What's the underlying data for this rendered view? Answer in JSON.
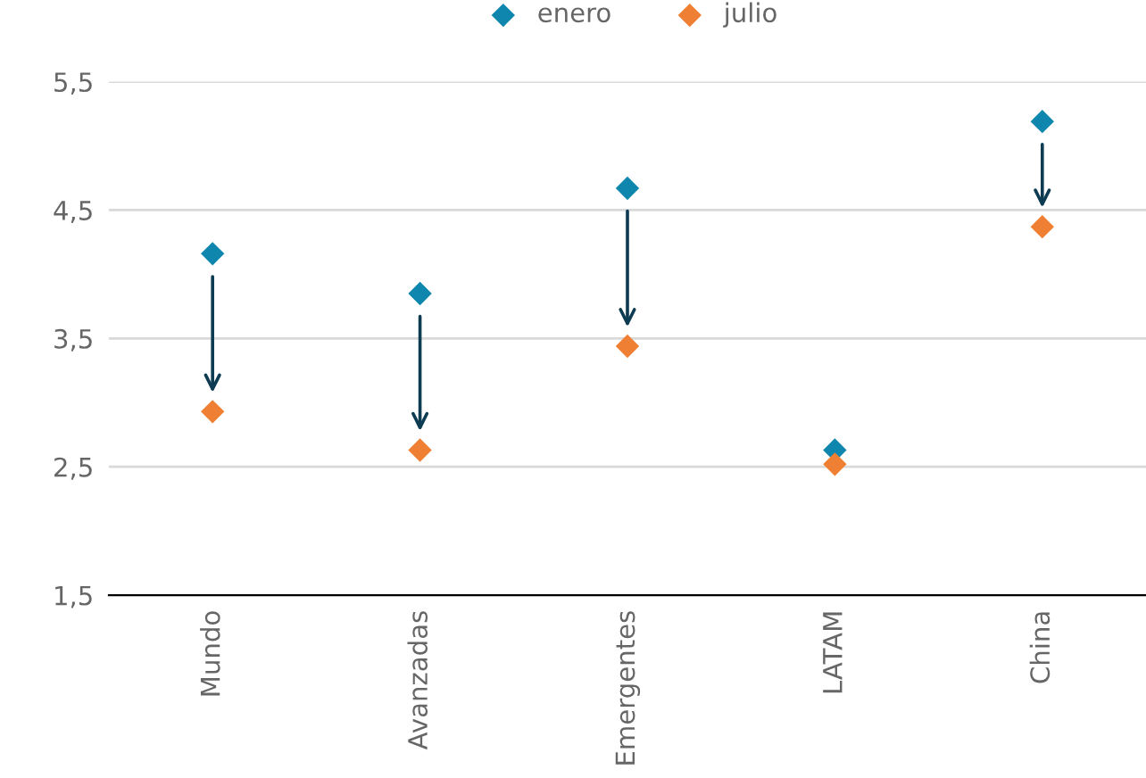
{
  "chart_data": {
    "type": "scatter",
    "categories": [
      "Mundo",
      "Avanzadas",
      "Emergentes",
      "LATAM",
      "China"
    ],
    "series": [
      {
        "name": "enero",
        "color": "#0f86ad",
        "values": [
          4.16,
          3.85,
          4.67,
          2.63,
          5.19
        ]
      },
      {
        "name": "julio",
        "color": "#ef7f32",
        "values": [
          2.93,
          2.63,
          3.44,
          2.52,
          4.37
        ]
      }
    ],
    "ylim": [
      1.5,
      5.5
    ],
    "yticks": [
      {
        "value": 1.5,
        "label": "1,5"
      },
      {
        "value": 2.5,
        "label": "2,5"
      },
      {
        "value": 3.5,
        "label": "3,5"
      },
      {
        "value": 4.5,
        "label": "4,5"
      },
      {
        "value": 5.5,
        "label": "5,5"
      }
    ],
    "grid": "y",
    "legend": "top",
    "marker": "diamond"
  }
}
